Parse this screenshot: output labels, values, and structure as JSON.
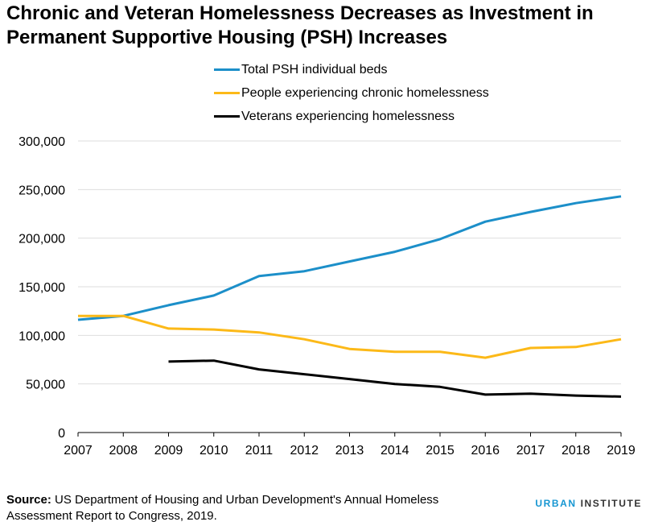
{
  "title": "Chronic and Veteran Homelessness Decreases as Investment in Permanent Supportive Housing (PSH) Increases",
  "colors": {
    "blue": "#1c8fc9",
    "yellow": "#fcb918",
    "black": "#000000",
    "grid": "#dedede"
  },
  "chart_data": {
    "type": "line",
    "title": "Chronic and Veteran Homelessness Decreases as Investment in Permanent Supportive Housing (PSH) Increases",
    "xlabel": "",
    "ylabel": "",
    "x": [
      2007,
      2008,
      2009,
      2010,
      2011,
      2012,
      2013,
      2014,
      2015,
      2016,
      2017,
      2018,
      2019
    ],
    "ylim": [
      0,
      300000
    ],
    "yticks": [
      0,
      50000,
      100000,
      150000,
      200000,
      250000,
      300000
    ],
    "ytick_labels": [
      "0",
      "50,000",
      "100,000",
      "150,000",
      "200,000",
      "250,000",
      "300,000"
    ],
    "xtick_labels": [
      "2007",
      "2008",
      "2009",
      "2010",
      "2011",
      "2012",
      "2013",
      "2014",
      "2015",
      "2016",
      "2017",
      "2018",
      "2019"
    ],
    "grid": true,
    "legend_position": "top-center",
    "series": [
      {
        "name": "Total PSH individual beds",
        "color": "#1c8fc9",
        "values": [
          116000,
          120000,
          131000,
          141000,
          161000,
          166000,
          176000,
          186000,
          199000,
          217000,
          227000,
          236000,
          243000
        ]
      },
      {
        "name": "People experiencing chronic homelessness",
        "color": "#fcb918",
        "values": [
          120000,
          120000,
          107000,
          106000,
          103000,
          96000,
          86000,
          83000,
          83000,
          77000,
          87000,
          88000,
          96000
        ]
      },
      {
        "name": "Veterans experiencing homelessness",
        "color": "#000000",
        "values": [
          null,
          null,
          73000,
          74000,
          65000,
          60000,
          55000,
          50000,
          47000,
          39000,
          40000,
          38000,
          37000
        ]
      }
    ]
  },
  "source": {
    "label": "Source:",
    "text": " US Department of Housing and Urban Development's Annual Homeless Assessment Report to Congress, 2019."
  },
  "brand": {
    "word1": "URBAN",
    "word2": " INSTITUTE"
  }
}
